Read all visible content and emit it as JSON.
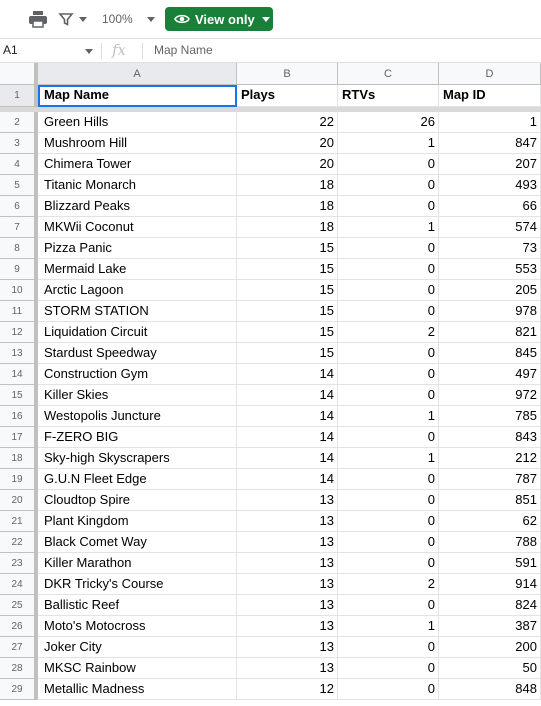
{
  "toolbar": {
    "print_icon": "print-icon",
    "filter_icon": "filter-icon",
    "zoom": "100%",
    "view_only_label": "View only",
    "accent": "#188038"
  },
  "formula_bar": {
    "cell_ref": "A1",
    "fx": "fx",
    "content": "Map Name"
  },
  "columns": [
    "A",
    "B",
    "C",
    "D"
  ],
  "header_row": {
    "num": "1",
    "cells": [
      "Map Name",
      "Plays",
      "RTVs",
      "Map ID"
    ]
  },
  "rows": [
    {
      "num": "2",
      "name": "Green Hills",
      "plays": "22",
      "rtvs": "26",
      "id": "1"
    },
    {
      "num": "3",
      "name": "Mushroom Hill",
      "plays": "20",
      "rtvs": "1",
      "id": "847"
    },
    {
      "num": "4",
      "name": "Chimera Tower",
      "plays": "20",
      "rtvs": "0",
      "id": "207"
    },
    {
      "num": "5",
      "name": "Titanic Monarch",
      "plays": "18",
      "rtvs": "0",
      "id": "493"
    },
    {
      "num": "6",
      "name": "Blizzard Peaks",
      "plays": "18",
      "rtvs": "0",
      "id": "66"
    },
    {
      "num": "7",
      "name": "MKWii Coconut",
      "plays": "18",
      "rtvs": "1",
      "id": "574"
    },
    {
      "num": "8",
      "name": "Pizza Panic",
      "plays": "15",
      "rtvs": "0",
      "id": "73"
    },
    {
      "num": "9",
      "name": "Mermaid Lake",
      "plays": "15",
      "rtvs": "0",
      "id": "553"
    },
    {
      "num": "10",
      "name": "Arctic Lagoon",
      "plays": "15",
      "rtvs": "0",
      "id": "205"
    },
    {
      "num": "11",
      "name": "STORM STATION",
      "plays": "15",
      "rtvs": "0",
      "id": "978"
    },
    {
      "num": "12",
      "name": "Liquidation Circuit",
      "plays": "15",
      "rtvs": "2",
      "id": "821"
    },
    {
      "num": "13",
      "name": "Stardust Speedway",
      "plays": "15",
      "rtvs": "0",
      "id": "845"
    },
    {
      "num": "14",
      "name": "Construction Gym",
      "plays": "14",
      "rtvs": "0",
      "id": "497"
    },
    {
      "num": "15",
      "name": "Killer Skies",
      "plays": "14",
      "rtvs": "0",
      "id": "972"
    },
    {
      "num": "16",
      "name": "Westopolis Juncture",
      "plays": "14",
      "rtvs": "1",
      "id": "785"
    },
    {
      "num": "17",
      "name": "F-ZERO BIG",
      "plays": "14",
      "rtvs": "0",
      "id": "843"
    },
    {
      "num": "18",
      "name": "Sky-high Skyscrapers",
      "plays": "14",
      "rtvs": "1",
      "id": "212"
    },
    {
      "num": "19",
      "name": "G.U.N Fleet Edge",
      "plays": "14",
      "rtvs": "0",
      "id": "787"
    },
    {
      "num": "20",
      "name": "Cloudtop Spire",
      "plays": "13",
      "rtvs": "0",
      "id": "851"
    },
    {
      "num": "21",
      "name": "Plant Kingdom",
      "plays": "13",
      "rtvs": "0",
      "id": "62"
    },
    {
      "num": "22",
      "name": "Black Comet Way",
      "plays": "13",
      "rtvs": "0",
      "id": "788"
    },
    {
      "num": "23",
      "name": "Killer Marathon",
      "plays": "13",
      "rtvs": "0",
      "id": "591"
    },
    {
      "num": "24",
      "name": "DKR Tricky's Course",
      "plays": "13",
      "rtvs": "2",
      "id": "914"
    },
    {
      "num": "25",
      "name": "Ballistic Reef",
      "plays": "13",
      "rtvs": "0",
      "id": "824"
    },
    {
      "num": "26",
      "name": "Moto's Motocross",
      "plays": "13",
      "rtvs": "1",
      "id": "387"
    },
    {
      "num": "27",
      "name": "Joker City",
      "plays": "13",
      "rtvs": "0",
      "id": "200"
    },
    {
      "num": "28",
      "name": "MKSC Rainbow",
      "plays": "13",
      "rtvs": "0",
      "id": "50"
    },
    {
      "num": "29",
      "name": "Metallic Madness",
      "plays": "12",
      "rtvs": "0",
      "id": "848"
    }
  ]
}
